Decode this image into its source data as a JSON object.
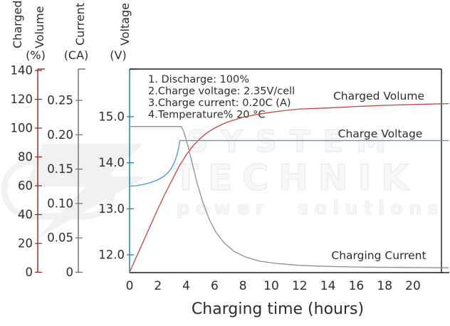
{
  "watermark": {
    "line1": "SYSTEM",
    "line2": "TECHNIK",
    "line3": "power solutions"
  },
  "annotations": {
    "lines": [
      "1. Discharge: 100%",
      "2.Charge voltage: 2.35V/cell",
      "3.Charge current: 0.20C (A)",
      "4.Temperature% 20 °C"
    ]
  },
  "chart_data": {
    "type": "line",
    "title": "",
    "xlabel": "Charging time (hours)",
    "xlim": [
      0,
      22.5
    ],
    "x_tick_values": [
      0,
      2,
      4,
      6,
      8,
      10,
      12,
      14,
      16,
      18,
      20
    ],
    "x_tick_labels": [
      "0",
      "2",
      "4",
      "6",
      "8",
      "10",
      "12",
      "14",
      "16",
      "18",
      "20"
    ],
    "grid": false,
    "legend_position": "labels-on-curves",
    "axes": [
      {
        "id": "volume",
        "title_lines": [
          "Charged",
          "Volume"
        ],
        "unit": "(%)",
        "color": "#8c2323",
        "range": [
          0,
          141
        ],
        "tick_values": [
          0,
          20,
          40,
          60,
          80,
          100,
          120,
          140
        ],
        "tick_labels": [
          "0",
          "20",
          "40",
          "60",
          "80",
          "100",
          "120",
          "140"
        ]
      },
      {
        "id": "current",
        "title_lines": [
          "Current"
        ],
        "unit": "(CA)",
        "color": "#6b6b6b",
        "range": [
          0,
          0.295
        ],
        "tick_values": [
          0,
          0.05,
          0.1,
          0.15,
          0.2,
          0.25
        ],
        "tick_labels": [
          "0",
          "0.05",
          "0.10",
          "0.15",
          "0.20",
          "0.25"
        ]
      },
      {
        "id": "voltage",
        "title_lines": [
          "Voltage"
        ],
        "unit": "(V)",
        "color": "#16789f",
        "range": [
          11.6,
          16.0
        ],
        "tick_values": [
          12,
          13,
          14,
          15
        ],
        "tick_labels": [
          "12.0",
          "13.0",
          "14.0",
          "15.0"
        ]
      }
    ],
    "series": [
      {
        "name": "Charged Volume",
        "axis": "volume",
        "color": "#c0463e",
        "points": [
          [
            0,
            0
          ],
          [
            0.5,
            11
          ],
          [
            1,
            22
          ],
          [
            1.5,
            33
          ],
          [
            2,
            44
          ],
          [
            2.5,
            54.5
          ],
          [
            3,
            64
          ],
          [
            3.5,
            73.5
          ],
          [
            4,
            81.5
          ],
          [
            4.5,
            88
          ],
          [
            5,
            93
          ],
          [
            5.5,
            97
          ],
          [
            6,
            100
          ],
          [
            6.5,
            102.5
          ],
          [
            7,
            104.5
          ],
          [
            8,
            107.5
          ],
          [
            9,
            109.5
          ],
          [
            10,
            111
          ],
          [
            11,
            112.3
          ],
          [
            12,
            113.3
          ],
          [
            14,
            114
          ],
          [
            16,
            115
          ],
          [
            18,
            115.8
          ],
          [
            20,
            116.4
          ],
          [
            22.5,
            117
          ]
        ]
      },
      {
        "name": "Charge Voltage",
        "axis": "voltage",
        "color": "#3e9bcc",
        "points": [
          [
            0,
            13.49
          ],
          [
            0.5,
            13.5
          ],
          [
            1,
            13.53
          ],
          [
            1.5,
            13.57
          ],
          [
            2,
            13.63
          ],
          [
            2.4,
            13.7
          ],
          [
            2.7,
            13.78
          ],
          [
            2.95,
            13.88
          ],
          [
            3.15,
            14.0
          ],
          [
            3.3,
            14.13
          ],
          [
            3.45,
            14.3
          ],
          [
            3.55,
            14.48
          ],
          [
            22.5,
            14.48
          ]
        ]
      },
      {
        "name": "Charging Current",
        "axis": "current",
        "color": "#8e8e8e",
        "points": [
          [
            0,
            0.212
          ],
          [
            3.65,
            0.212
          ],
          [
            3.85,
            0.203
          ],
          [
            4.1,
            0.185
          ],
          [
            4.4,
            0.16
          ],
          [
            4.75,
            0.131
          ],
          [
            5.15,
            0.103
          ],
          [
            5.6,
            0.078
          ],
          [
            6.1,
            0.058
          ],
          [
            6.7,
            0.042
          ],
          [
            7.4,
            0.03
          ],
          [
            8.2,
            0.022
          ],
          [
            9.2,
            0.016
          ],
          [
            10.5,
            0.0125
          ],
          [
            12,
            0.01
          ],
          [
            14,
            0.0085
          ],
          [
            16.5,
            0.0075
          ],
          [
            19,
            0.007
          ],
          [
            22.5,
            0.0065
          ]
        ]
      }
    ]
  }
}
